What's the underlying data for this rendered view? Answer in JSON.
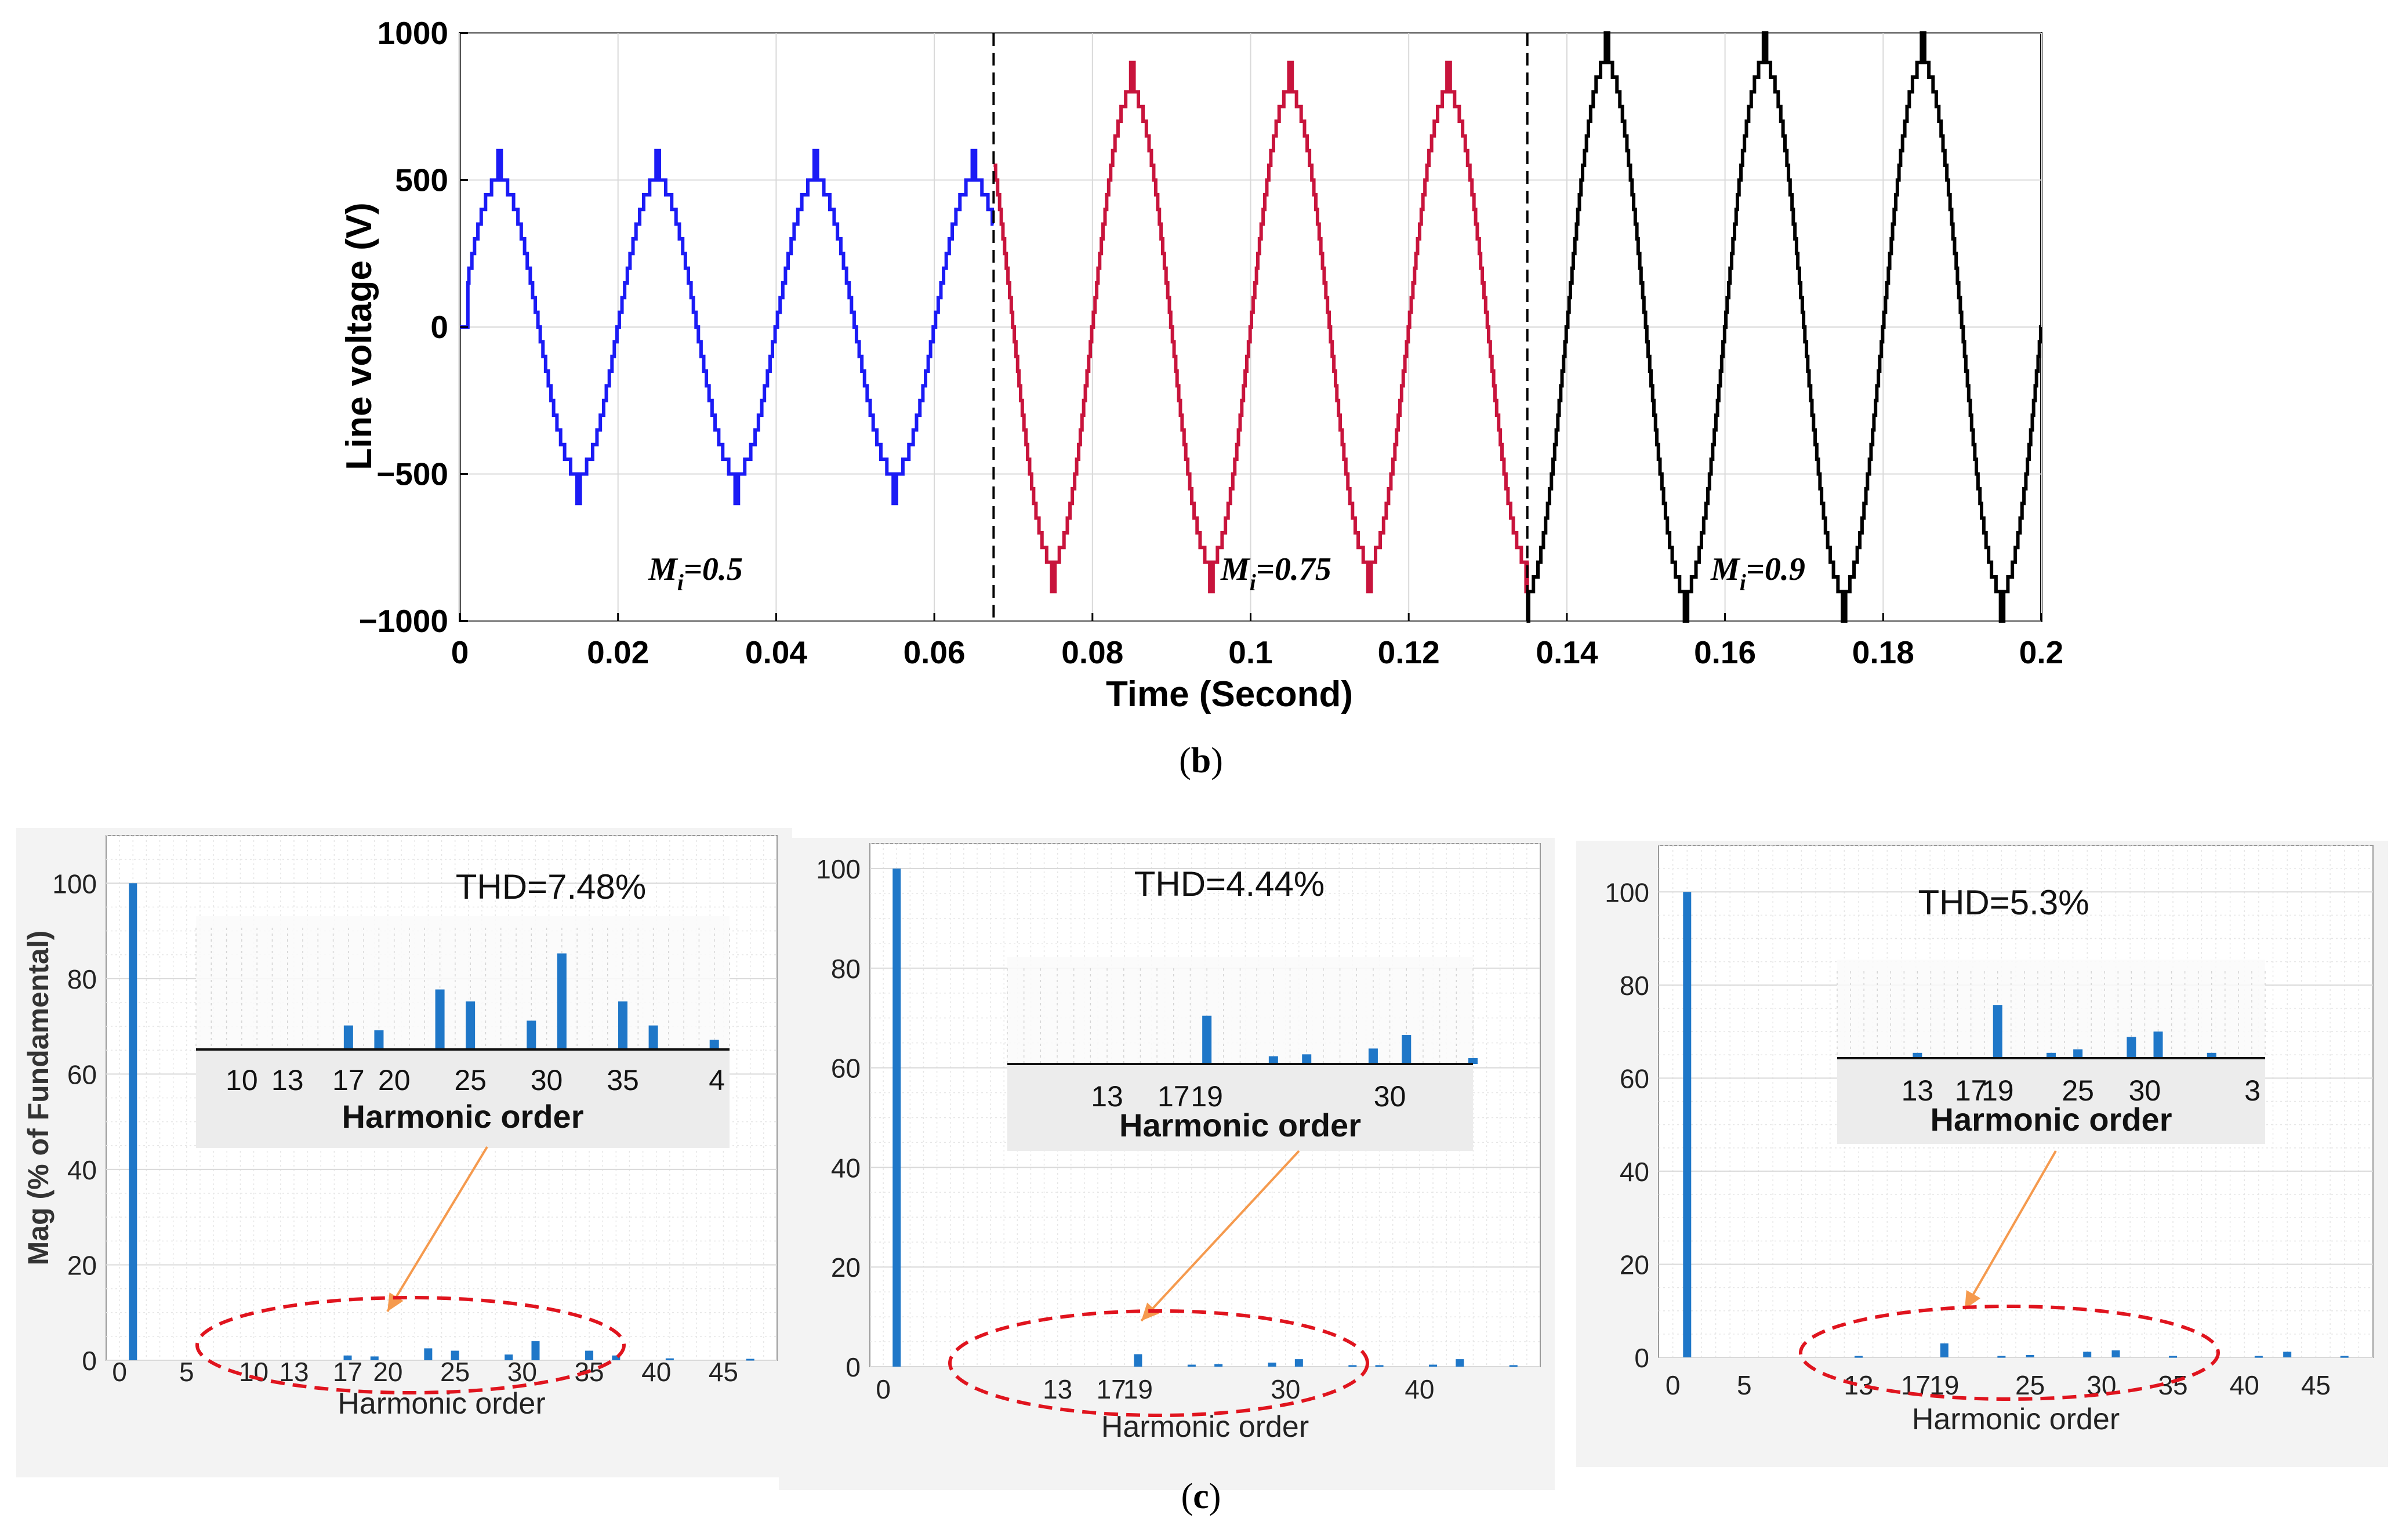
{
  "colors": {
    "blue": "#1b1bf5",
    "red": "#c8143c",
    "black": "#000000",
    "bar": "#1f77c8",
    "grid": "#d9d9d9",
    "panel_bg": "#f3f3f3",
    "inset_bg": "#ececec",
    "ellipse": "#e0141e",
    "arrow": "#f59a4e"
  },
  "figure_b": {
    "label_open": "(",
    "label_letter": "b",
    "label_close": ")"
  },
  "figure_c": {
    "label_open": "(",
    "label_letter": "c",
    "label_close": ")"
  },
  "chart_data": [
    {
      "type": "line",
      "title": "",
      "xlabel": "Time (Second)",
      "ylabel": "Line voltage (V)",
      "xlim": [
        0,
        0.2
      ],
      "ylim": [
        -1000,
        1000
      ],
      "x_ticks": [
        0,
        0.02,
        0.04,
        0.06,
        0.08,
        0.1,
        0.12,
        0.14,
        0.16,
        0.18,
        0.2
      ],
      "x_tick_labels": [
        "0",
        "0.02",
        "0.04",
        "0.06",
        "0.08",
        "0.1",
        "0.12",
        "0.14",
        "0.16",
        "0.18",
        "0.2"
      ],
      "y_ticks": [
        -1000,
        -500,
        0,
        500,
        1000
      ],
      "y_tick_labels": [
        "−1000",
        "−500",
        "0",
        "500",
        "1000"
      ],
      "grid": true,
      "frequency_hz": 50,
      "waveform": "stepped multilevel sine",
      "boundaries": [
        0.0675,
        0.135
      ],
      "series": [
        {
          "name": "Mi=0.5",
          "color_key": "blue",
          "t_start": 0,
          "t_end": 0.0675,
          "amplitude": 500,
          "peak": 600,
          "step": 50,
          "annotation_base": "M",
          "annotation_sub": "i",
          "annotation_value": "=0.5"
        },
        {
          "name": "Mi=0.75",
          "color_key": "red",
          "t_start": 0.0675,
          "t_end": 0.135,
          "amplitude": 800,
          "peak": 900,
          "step": 50,
          "annotation_base": "M",
          "annotation_sub": "i",
          "annotation_value": "=0.75"
        },
        {
          "name": "Mi=0.9",
          "color_key": "black",
          "t_start": 0.135,
          "t_end": 0.2,
          "amplitude": 900,
          "peak": 1000,
          "step": 50,
          "annotation_base": "M",
          "annotation_sub": "i",
          "annotation_value": "=0.9"
        }
      ]
    },
    {
      "type": "bar",
      "title": "THD=7.48%",
      "xlabel": "Harmonic order",
      "ylabel": "Mag (% of Fundamental)",
      "xlim": [
        -1,
        49
      ],
      "ylim": [
        0,
        110
      ],
      "x_ticks": [
        0,
        5,
        10,
        13,
        17,
        20,
        25,
        30,
        35,
        40,
        45
      ],
      "y_ticks": [
        0,
        20,
        40,
        60,
        80,
        100
      ],
      "harmonics": [
        1,
        17,
        19,
        23,
        25,
        29,
        31,
        35,
        37,
        41,
        47
      ],
      "values": [
        100,
        1.0,
        0.8,
        2.5,
        2.0,
        1.2,
        4.0,
        2.0,
        1.0,
        0.4,
        0.3
      ],
      "inset": {
        "xlim": [
          7,
          42
        ],
        "ylim": [
          0,
          5
        ],
        "x_ticks": [
          10,
          13,
          17,
          20,
          25,
          30,
          35
        ],
        "x_tick_labels": [
          "10",
          "13",
          "17",
          "20",
          "25",
          "30",
          "35"
        ],
        "clipped_tick_label": "4",
        "xlabel": "Harmonic order"
      }
    },
    {
      "type": "bar",
      "title": "THD=4.44%",
      "xlabel": "Harmonic order",
      "ylabel": "",
      "xlim": [
        -1,
        49
      ],
      "ylim": [
        0,
        105
      ],
      "x_ticks": [
        0,
        13,
        17,
        19,
        30,
        40
      ],
      "y_ticks": [
        0,
        20,
        40,
        60,
        80,
        100
      ],
      "harmonics": [
        1,
        19,
        23,
        25,
        29,
        31,
        35,
        37,
        41,
        43,
        47
      ],
      "values": [
        100,
        2.5,
        0.4,
        0.5,
        0.8,
        1.5,
        0.3,
        0.3,
        0.4,
        1.5,
        0.3
      ],
      "inset": {
        "xlim": [
          7,
          35
        ],
        "ylim": [
          0,
          5
        ],
        "x_ticks": [
          13,
          17,
          19,
          30
        ],
        "x_tick_labels": [
          "13",
          "17",
          "19",
          "30"
        ],
        "clipped_tick_label": "",
        "xlabel": "Harmonic order"
      }
    },
    {
      "type": "bar",
      "title": "THD=5.3%",
      "xlabel": "Harmonic order",
      "ylabel": "",
      "xlim": [
        -1,
        49
      ],
      "ylim": [
        0,
        110
      ],
      "x_ticks": [
        0,
        5,
        13,
        17,
        19,
        25,
        30,
        35,
        40,
        45
      ],
      "y_ticks": [
        0,
        20,
        40,
        60,
        80,
        100
      ],
      "harmonics": [
        1,
        13,
        19,
        23,
        25,
        29,
        31,
        35,
        41,
        43,
        47
      ],
      "values": [
        100,
        0.3,
        3.0,
        0.3,
        0.5,
        1.2,
        1.5,
        0.3,
        0.3,
        1.2,
        0.3
      ],
      "inset": {
        "xlim": [
          7,
          39
        ],
        "ylim": [
          0,
          5
        ],
        "x_ticks": [
          13,
          17,
          19,
          25,
          30
        ],
        "x_tick_labels": [
          "13",
          "17",
          "19",
          "25",
          "30"
        ],
        "clipped_tick_label": "3",
        "xlabel": "Harmonic order"
      }
    }
  ]
}
